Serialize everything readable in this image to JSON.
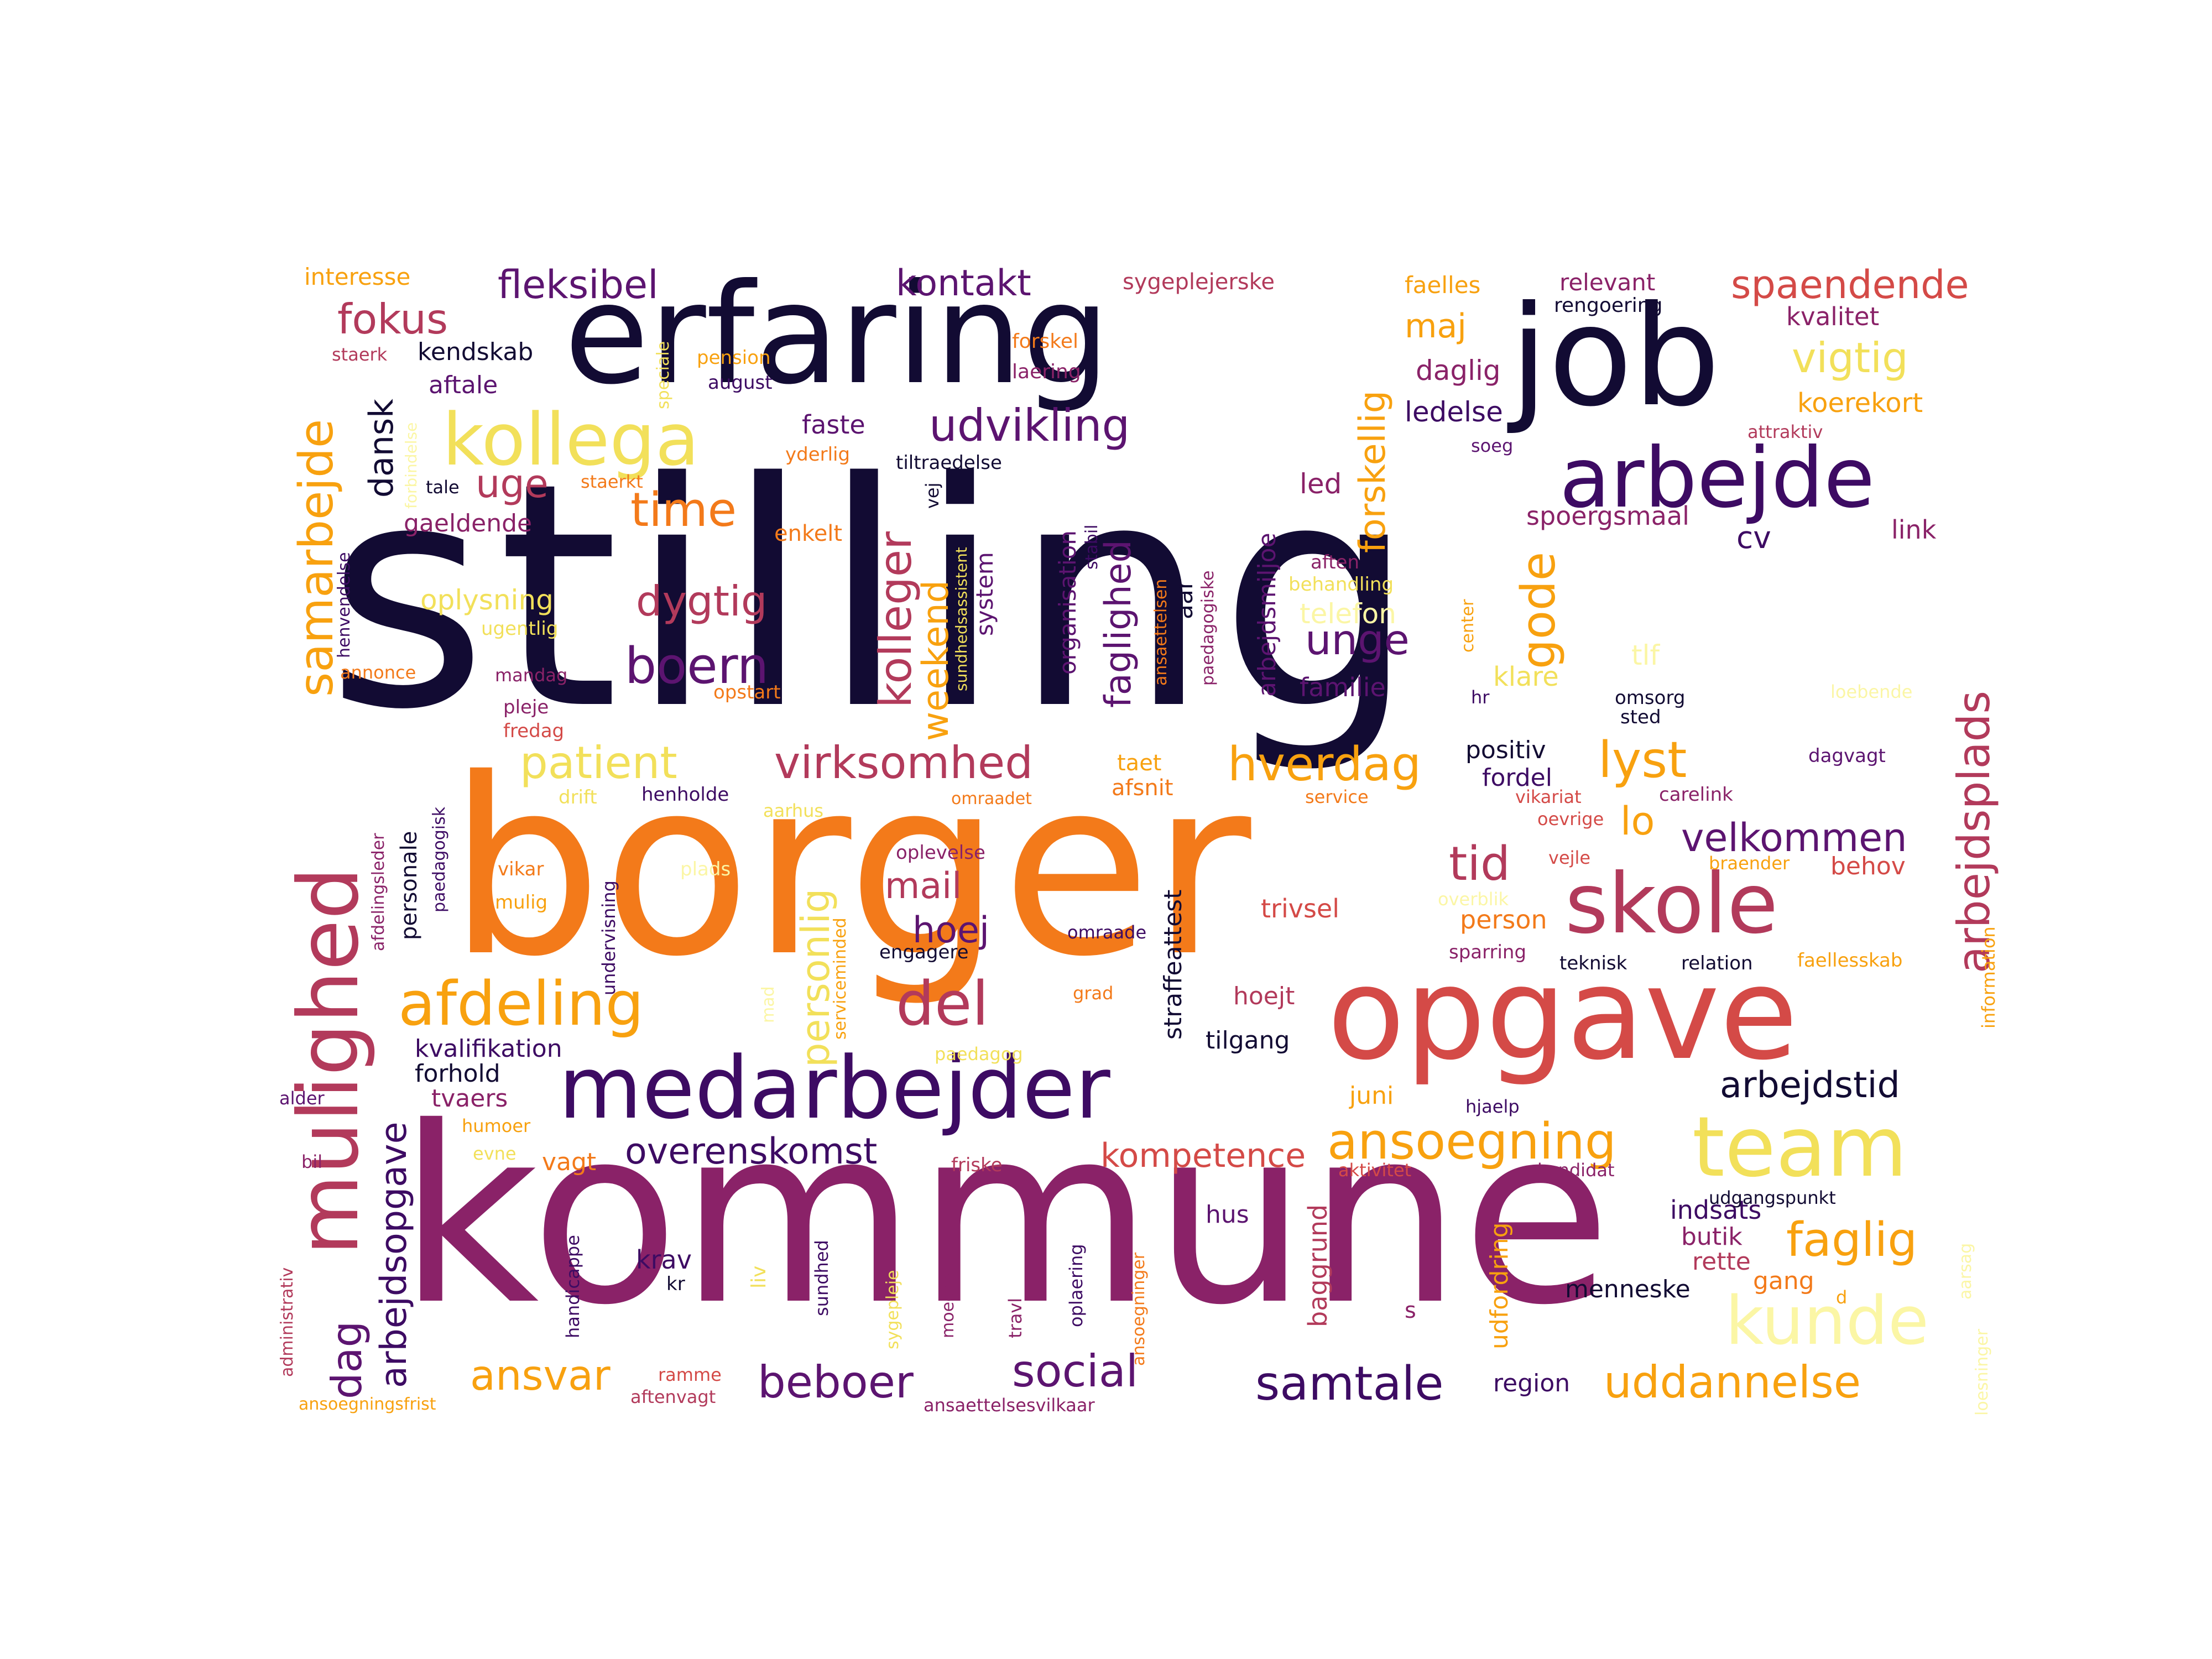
{
  "wordcloud": {
    "colors": {
      "navy": "#120b33",
      "darkpurple": "#3d0b63",
      "purple": "#5c1470",
      "magenta": "#8a2268",
      "crimson": "#b23a5b",
      "red": "#d44a47",
      "orange": "#f37a1a",
      "amber": "#f8a10f",
      "yellow": "#f2e05a",
      "paleyellow": "#fbf6a5"
    },
    "words": [
      "stilling",
      "borger",
      "kommune",
      "erfaring",
      "job",
      "opgave",
      "medarbejder",
      "mulighed",
      "arbejde",
      "skole",
      "team",
      "kollega",
      "kunde",
      "afdeling",
      "samarbejde",
      "udvikling",
      "virksomhed",
      "arbejdsplads",
      "del",
      "ansoegning",
      "boern",
      "hverdag",
      "patient",
      "faglig",
      "gode",
      "lyst",
      "kolleger",
      "fokus",
      "fleksibel",
      "kontakt",
      "spaendende",
      "time",
      "dygtig",
      "beboer",
      "social",
      "samtale",
      "uddannelse",
      "ansvar",
      "overenskomst",
      "arbejdsopgave",
      "personlig",
      "tid",
      "velkommen",
      "dag",
      "unge",
      "mail",
      "hoej",
      "weekend",
      "faglighed",
      "kompetence",
      "arbejdstid",
      "forskellig",
      "uge",
      "vigtig",
      "dansk",
      "maj",
      "interesse",
      "sygeplejerske",
      "faelles",
      "relevant",
      "rengoering",
      "kvalitet",
      "koerekort",
      "daglig",
      "ledelse",
      "spoergsmaal",
      "cv",
      "link",
      "led",
      "familie",
      "telefon",
      "tlf",
      "klare",
      "omsorg",
      "sted",
      "positiv",
      "fordel",
      "lo",
      "behov",
      "person",
      "trivsel",
      "hoejt",
      "tilgang",
      "kvalifikation",
      "forhold",
      "tvaers",
      "juni",
      "vagt",
      "hus",
      "krav",
      "kr",
      "indsats",
      "butik",
      "rette",
      "gang",
      "menneske",
      "region",
      "baggrund",
      "udfordring",
      "straffeattest",
      "system",
      "organisation",
      "arbejdsmiljoe",
      "oplysning",
      "gaeldende",
      "aftale",
      "kendskab",
      "staerk",
      "pension",
      "august",
      "forskel",
      "laering",
      "faste",
      "yderlig",
      "tiltraedelse",
      "attraktiv",
      "soeg",
      "tale",
      "staerkt",
      "enkelt",
      "vej",
      "aften",
      "behandling",
      "stabil",
      "aar",
      "paedagogiske",
      "ansaettelsen",
      "center",
      "hr",
      "loebende",
      "dagvagt",
      "carelink",
      "vikariat",
      "oevrige",
      "vejle",
      "braender",
      "overblik",
      "sparring",
      "teknisk",
      "relation",
      "faellesskab",
      "information",
      "oplevelse",
      "omraade",
      "engagere",
      "grad",
      "paedagog",
      "aktivitet",
      "kandidat",
      "udgangspunkt",
      "hjaelp",
      "annonce",
      "ugentlig",
      "mandag",
      "opstart",
      "pleje",
      "fredag",
      "henvendelse",
      "forbindelse",
      "speciale",
      "afdelingsleder",
      "personale",
      "paedagogisk",
      "drift",
      "henholde",
      "aarhus",
      "omraadet",
      "service",
      "vikar",
      "mulig",
      "plads",
      "undervisning",
      "serviceminded",
      "mad",
      "sundhedsassistent",
      "taet",
      "afsnit",
      "alder",
      "bil",
      "humoer",
      "evne",
      "friske",
      "administrativ",
      "handicappe",
      "liv",
      "sundhed",
      "sygepleje",
      "moedestabil",
      "travl",
      "oplaering",
      "ansoegninger",
      "s",
      "d",
      "aarsag",
      "loesninger",
      "ansoegningsfrist",
      "ramme",
      "aftenvagt",
      "ansaettelsesvilkaar"
    ]
  }
}
